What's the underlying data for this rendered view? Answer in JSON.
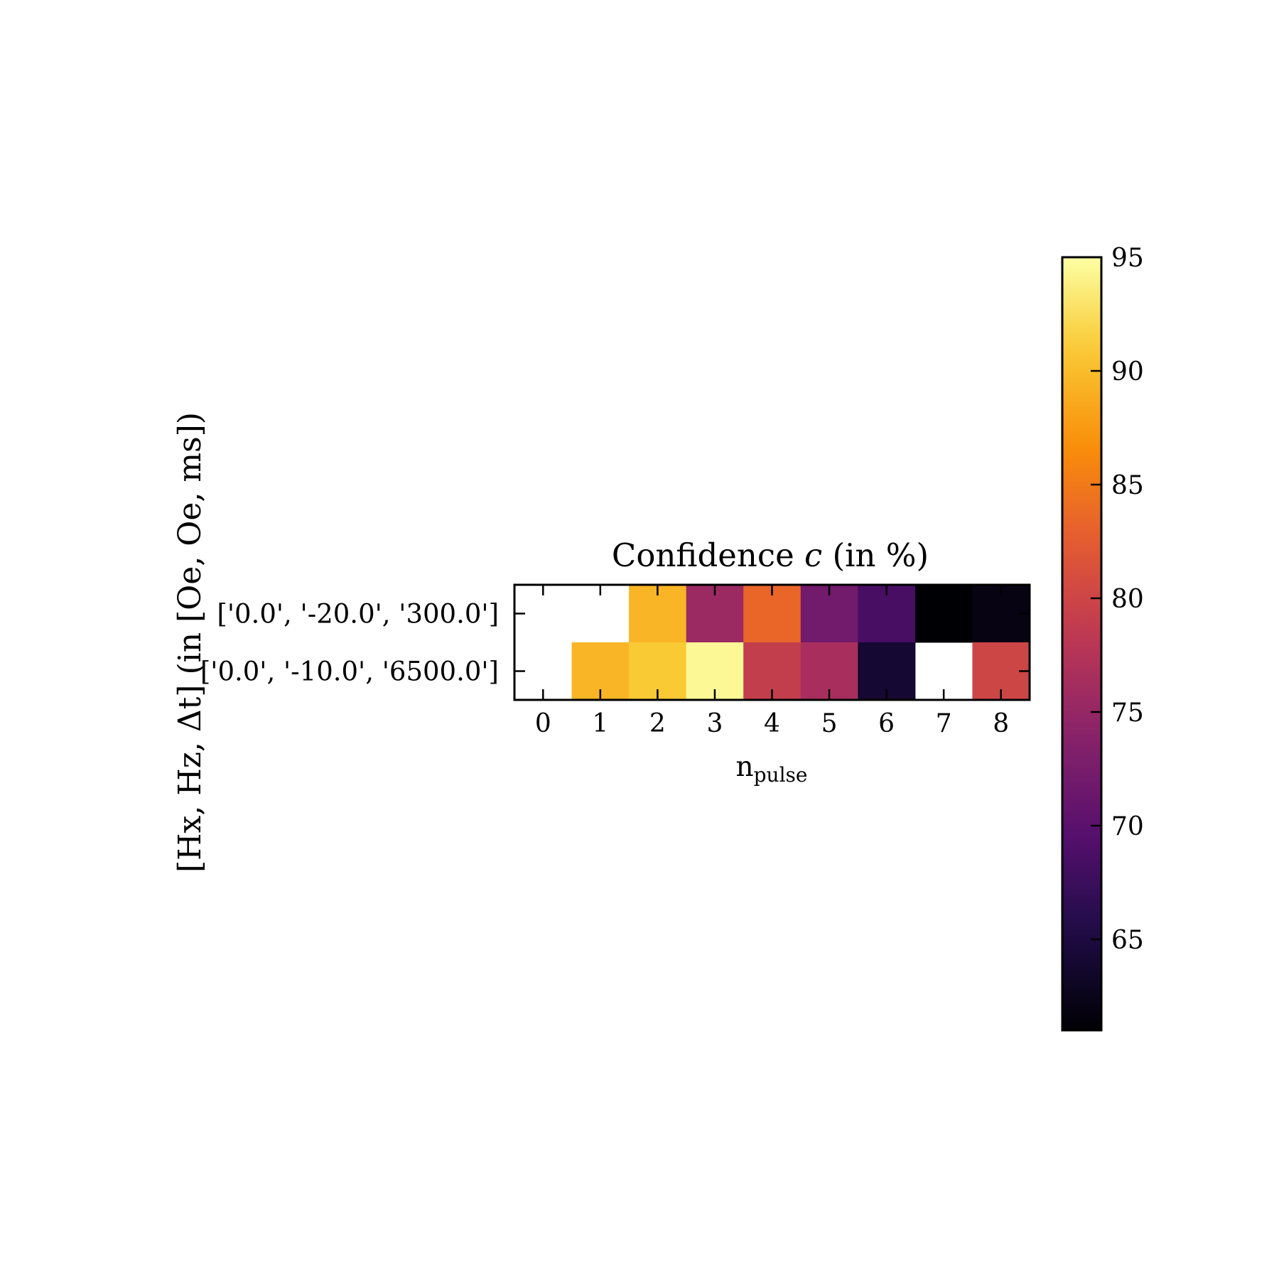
{
  "chart_data": {
    "type": "heatmap",
    "title_text": "Confidence ",
    "title_var": "c",
    "title_unit": " (in %)",
    "xlabel": "n",
    "xlabel_sub": "pulse",
    "ylabel": "[Hx, Hz, Δt] (in [Oe, Oe, ms])",
    "x_ticks": [
      "0",
      "1",
      "2",
      "3",
      "4",
      "5",
      "6",
      "7",
      "8"
    ],
    "y_ticks": [
      "['0.0', '-20.0', '300.0']",
      "['0.0', '-10.0', '6500.0']"
    ],
    "values": [
      [
        null,
        null,
        89.5,
        75.5,
        83.5,
        72.0,
        68.5,
        61.0,
        62.0
      ],
      [
        null,
        89.5,
        91.0,
        94.5,
        79.0,
        76.5,
        64.0,
        null,
        80.0
      ]
    ],
    "colormap": "inferno",
    "vmin": 61,
    "vmax": 95,
    "colorbar_ticks": [
      65,
      70,
      75,
      80,
      85,
      90,
      95
    ]
  }
}
